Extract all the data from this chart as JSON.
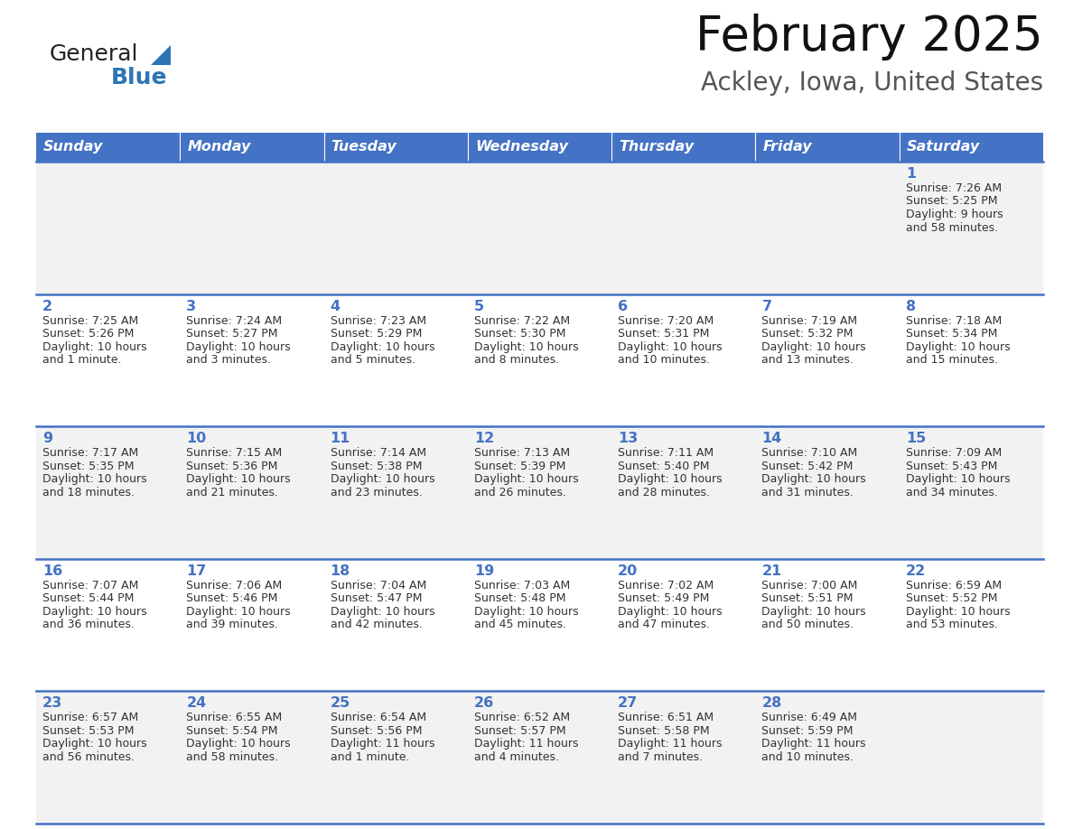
{
  "title": "February 2025",
  "subtitle": "Ackley, Iowa, United States",
  "header_bg": "#4472C4",
  "header_text_color": "#FFFFFF",
  "day_names": [
    "Sunday",
    "Monday",
    "Tuesday",
    "Wednesday",
    "Thursday",
    "Friday",
    "Saturday"
  ],
  "alt_row_bg": "#F2F2F2",
  "white_bg": "#FFFFFF",
  "border_color": "#4472C4",
  "text_color": "#333333",
  "number_color": "#4472C4",
  "logo_general_color": "#222222",
  "logo_blue_color": "#2E75B6",
  "calendar_data": [
    {
      "day": 1,
      "week": 0,
      "dow": 6,
      "sunrise": "7:26 AM",
      "sunset": "5:25 PM",
      "daylight": "9 hours and 58 minutes."
    },
    {
      "day": 2,
      "week": 1,
      "dow": 0,
      "sunrise": "7:25 AM",
      "sunset": "5:26 PM",
      "daylight": "10 hours and 1 minute."
    },
    {
      "day": 3,
      "week": 1,
      "dow": 1,
      "sunrise": "7:24 AM",
      "sunset": "5:27 PM",
      "daylight": "10 hours and 3 minutes."
    },
    {
      "day": 4,
      "week": 1,
      "dow": 2,
      "sunrise": "7:23 AM",
      "sunset": "5:29 PM",
      "daylight": "10 hours and 5 minutes."
    },
    {
      "day": 5,
      "week": 1,
      "dow": 3,
      "sunrise": "7:22 AM",
      "sunset": "5:30 PM",
      "daylight": "10 hours and 8 minutes."
    },
    {
      "day": 6,
      "week": 1,
      "dow": 4,
      "sunrise": "7:20 AM",
      "sunset": "5:31 PM",
      "daylight": "10 hours and 10 minutes."
    },
    {
      "day": 7,
      "week": 1,
      "dow": 5,
      "sunrise": "7:19 AM",
      "sunset": "5:32 PM",
      "daylight": "10 hours and 13 minutes."
    },
    {
      "day": 8,
      "week": 1,
      "dow": 6,
      "sunrise": "7:18 AM",
      "sunset": "5:34 PM",
      "daylight": "10 hours and 15 minutes."
    },
    {
      "day": 9,
      "week": 2,
      "dow": 0,
      "sunrise": "7:17 AM",
      "sunset": "5:35 PM",
      "daylight": "10 hours and 18 minutes."
    },
    {
      "day": 10,
      "week": 2,
      "dow": 1,
      "sunrise": "7:15 AM",
      "sunset": "5:36 PM",
      "daylight": "10 hours and 21 minutes."
    },
    {
      "day": 11,
      "week": 2,
      "dow": 2,
      "sunrise": "7:14 AM",
      "sunset": "5:38 PM",
      "daylight": "10 hours and 23 minutes."
    },
    {
      "day": 12,
      "week": 2,
      "dow": 3,
      "sunrise": "7:13 AM",
      "sunset": "5:39 PM",
      "daylight": "10 hours and 26 minutes."
    },
    {
      "day": 13,
      "week": 2,
      "dow": 4,
      "sunrise": "7:11 AM",
      "sunset": "5:40 PM",
      "daylight": "10 hours and 28 minutes."
    },
    {
      "day": 14,
      "week": 2,
      "dow": 5,
      "sunrise": "7:10 AM",
      "sunset": "5:42 PM",
      "daylight": "10 hours and 31 minutes."
    },
    {
      "day": 15,
      "week": 2,
      "dow": 6,
      "sunrise": "7:09 AM",
      "sunset": "5:43 PM",
      "daylight": "10 hours and 34 minutes."
    },
    {
      "day": 16,
      "week": 3,
      "dow": 0,
      "sunrise": "7:07 AM",
      "sunset": "5:44 PM",
      "daylight": "10 hours and 36 minutes."
    },
    {
      "day": 17,
      "week": 3,
      "dow": 1,
      "sunrise": "7:06 AM",
      "sunset": "5:46 PM",
      "daylight": "10 hours and 39 minutes."
    },
    {
      "day": 18,
      "week": 3,
      "dow": 2,
      "sunrise": "7:04 AM",
      "sunset": "5:47 PM",
      "daylight": "10 hours and 42 minutes."
    },
    {
      "day": 19,
      "week": 3,
      "dow": 3,
      "sunrise": "7:03 AM",
      "sunset": "5:48 PM",
      "daylight": "10 hours and 45 minutes."
    },
    {
      "day": 20,
      "week": 3,
      "dow": 4,
      "sunrise": "7:02 AM",
      "sunset": "5:49 PM",
      "daylight": "10 hours and 47 minutes."
    },
    {
      "day": 21,
      "week": 3,
      "dow": 5,
      "sunrise": "7:00 AM",
      "sunset": "5:51 PM",
      "daylight": "10 hours and 50 minutes."
    },
    {
      "day": 22,
      "week": 3,
      "dow": 6,
      "sunrise": "6:59 AM",
      "sunset": "5:52 PM",
      "daylight": "10 hours and 53 minutes."
    },
    {
      "day": 23,
      "week": 4,
      "dow": 0,
      "sunrise": "6:57 AM",
      "sunset": "5:53 PM",
      "daylight": "10 hours and 56 minutes."
    },
    {
      "day": 24,
      "week": 4,
      "dow": 1,
      "sunrise": "6:55 AM",
      "sunset": "5:54 PM",
      "daylight": "10 hours and 58 minutes."
    },
    {
      "day": 25,
      "week": 4,
      "dow": 2,
      "sunrise": "6:54 AM",
      "sunset": "5:56 PM",
      "daylight": "11 hours and 1 minute."
    },
    {
      "day": 26,
      "week": 4,
      "dow": 3,
      "sunrise": "6:52 AM",
      "sunset": "5:57 PM",
      "daylight": "11 hours and 4 minutes."
    },
    {
      "day": 27,
      "week": 4,
      "dow": 4,
      "sunrise": "6:51 AM",
      "sunset": "5:58 PM",
      "daylight": "11 hours and 7 minutes."
    },
    {
      "day": 28,
      "week": 4,
      "dow": 5,
      "sunrise": "6:49 AM",
      "sunset": "5:59 PM",
      "daylight": "11 hours and 10 minutes."
    }
  ]
}
